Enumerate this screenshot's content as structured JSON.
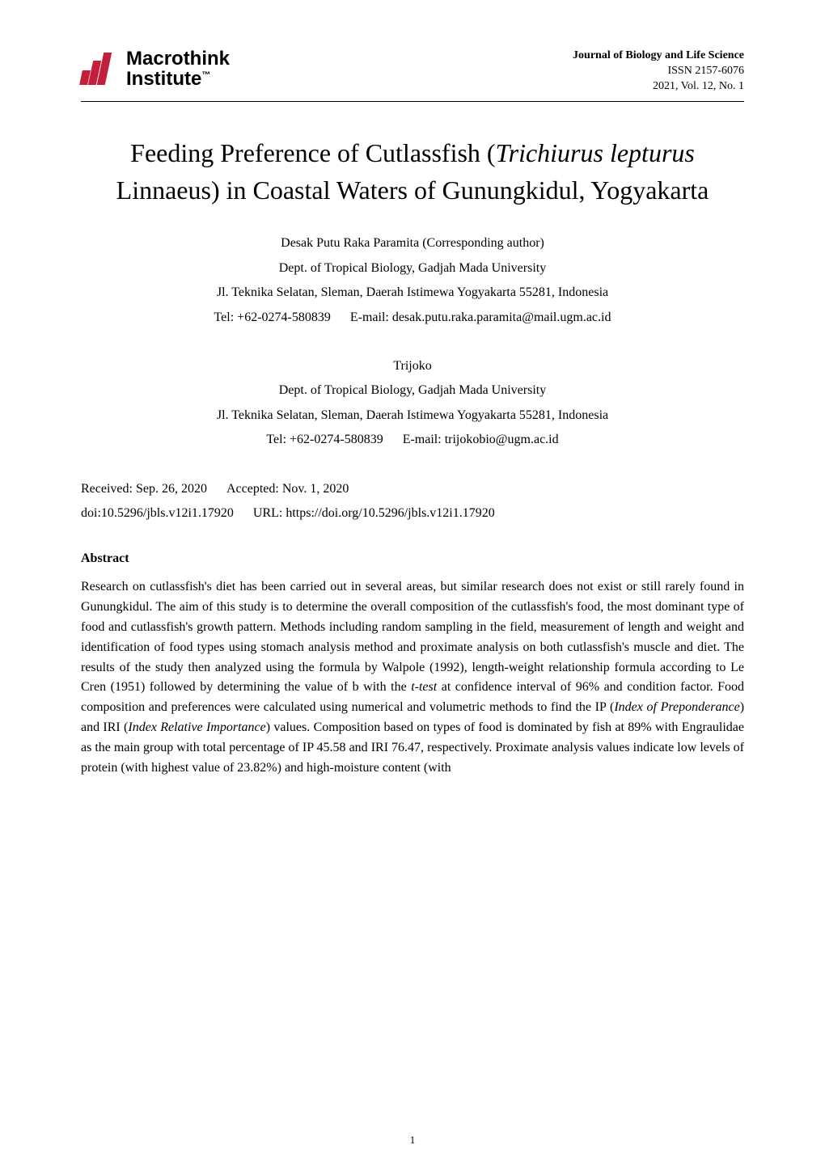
{
  "header": {
    "logo": {
      "line1": "Macrothink",
      "line2": "Institute",
      "tm": "™",
      "brand_color": "#c41e3a"
    },
    "journal": {
      "name": "Journal of Biology and Life Science",
      "issn": "ISSN  2157-6076",
      "issue": "2021,  Vol.  12,  No.  1"
    }
  },
  "title": {
    "part1": "Feeding Preference of Cutlassfish (",
    "species": "Trichiurus lepturus",
    "part2": " Linnaeus) in Coastal Waters of Gunungkidul, Yogyakarta"
  },
  "author1": {
    "name_line": "Desak Putu Raka Paramita (Corresponding author)",
    "dept": "Dept. of Tropical Biology, Gadjah Mada University",
    "address": "Jl. Teknika Selatan, Sleman, Daerah Istimewa Yogyakarta 55281, Indonesia",
    "tel_label": "Tel: +62-0274-580839",
    "email_label": "E-mail: desak.putu.raka.paramita@mail.ugm.ac.id"
  },
  "author2": {
    "name_line": "Trijoko",
    "dept": "Dept. of Tropical Biology, Gadjah Mada University",
    "address": "Jl. Teknika Selatan, Sleman, Daerah Istimewa Yogyakarta 55281, Indonesia",
    "tel_label": "Tel: +62-0274-580839",
    "email_label": "E-mail: trijokobio@ugm.ac.id"
  },
  "meta": {
    "received": "Received: Sep. 26, 2020",
    "accepted": "Accepted: Nov. 1, 2020",
    "doi": "doi:10.5296/jbls.v12i1.17920",
    "url": "URL: https://doi.org/10.5296/jbls.v12i1.17920"
  },
  "abstract": {
    "heading": "Abstract",
    "p1_a": "Research on cutlassfish's diet has been carried out in several areas, but similar research does not exist or still rarely found in Gunungkidul. The aim of this study is to determine the overall composition of the cutlassfish's food, the most dominant type of food and cutlassfish's growth pattern. Methods including random sampling in the field, measurement of length and weight and identification of food types using stomach analysis method and proximate analysis on both cutlassfish's muscle and diet. The results of the study then analyzed using the formula by Walpole (1992), length-weight relationship formula according to Le Cren (1951) followed by determining the value of b with the ",
    "p1_italic1": "t-test",
    "p1_b": " at confidence interval of 96% and condition factor. Food composition and preferences were calculated using numerical and volumetric methods to find the IP (",
    "p1_italic2": "Index of Preponderance",
    "p1_c": ") and IRI (",
    "p1_italic3": "Index Relative Importance",
    "p1_d": ") values. Composition based on types of food is dominated by fish at 89% with Engraulidae as the main group with total percentage of IP 45.58 and IRI 76.47, respectively. Proximate analysis values indicate low levels of protein (with highest value of 23.82%) and high-moisture content (with"
  },
  "page_number": "1"
}
